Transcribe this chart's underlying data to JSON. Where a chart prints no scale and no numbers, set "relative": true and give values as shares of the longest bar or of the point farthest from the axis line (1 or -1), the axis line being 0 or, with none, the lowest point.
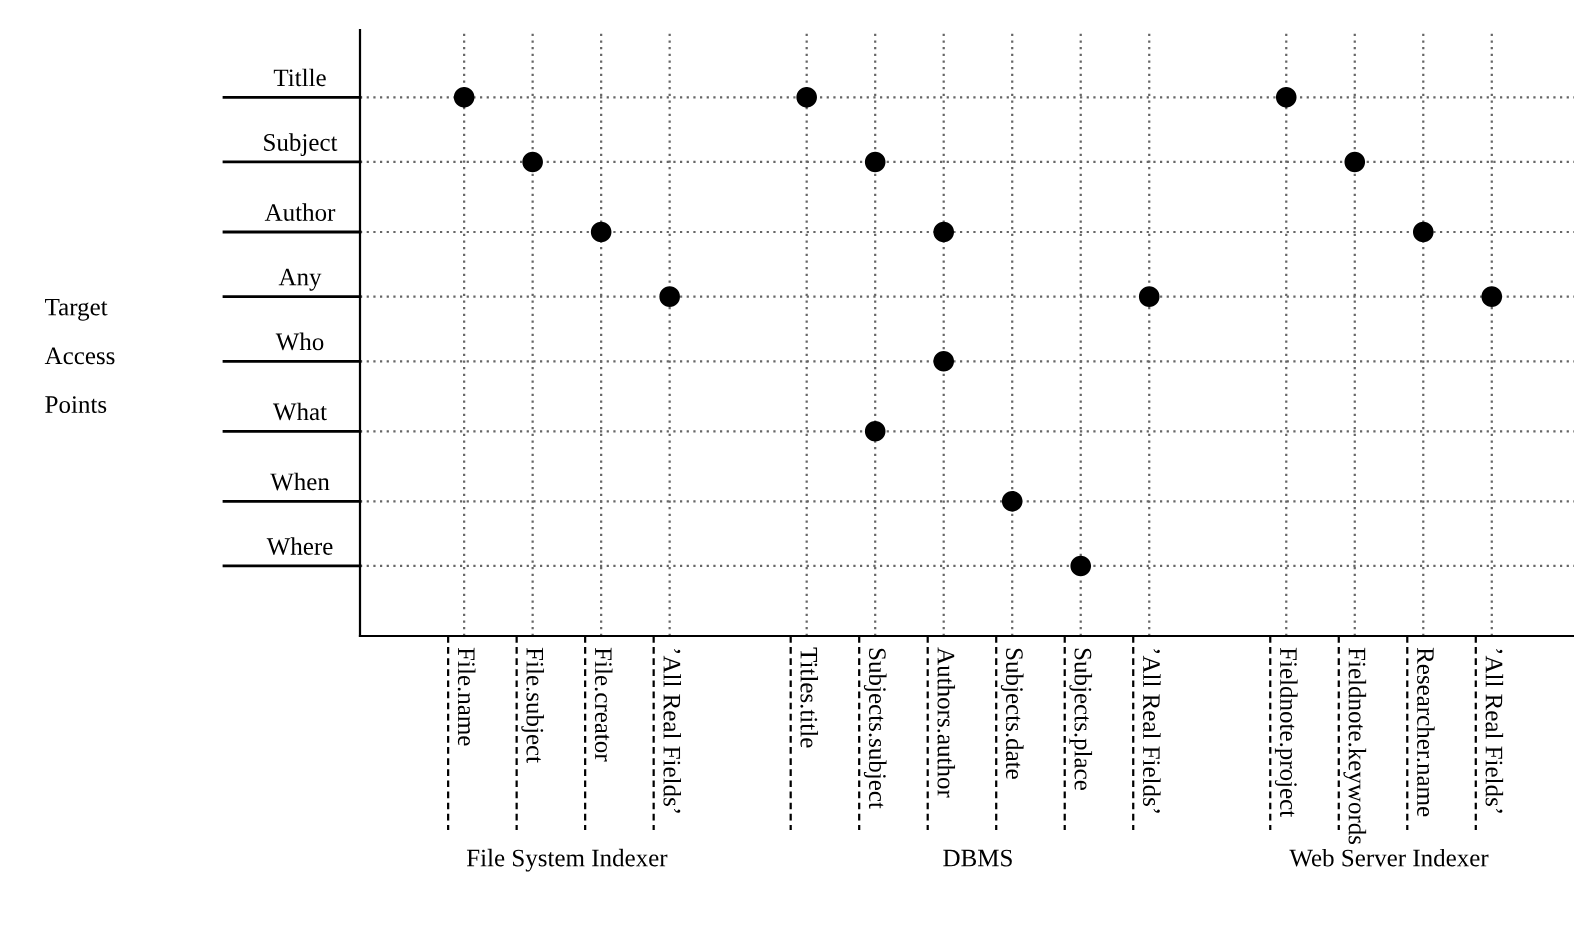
{
  "chart_data": {
    "type": "scatter",
    "relative": true,
    "ylabel": "Target\nAccess\nPoints",
    "categories": [
      "File.name",
      "File.subject",
      "File.creator",
      "’All Real Fields’",
      null,
      "Titles.title",
      "Subjects.subject",
      "Authors.author",
      "Subjects.date",
      "Subjects.place",
      "’All Real Fields’",
      null,
      "Fieldnote.project",
      "Fieldnote.keywords",
      "Researcher.name",
      "’All Real Fields’"
    ],
    "series": [
      {
        "color": "#000000",
        "values": [
          1.0,
          0.88,
          0.75,
          0.63,
          null,
          1.0,
          0.88,
          0.75,
          0.25,
          0.13,
          0.63,
          null,
          1.0,
          0.88,
          0.75,
          0.63
        ]
      },
      {
        "color": "#000000",
        "values": [
          null,
          null,
          null,
          null,
          null,
          null,
          0.38,
          0.51,
          null,
          null,
          null,
          null,
          null,
          null,
          null,
          null
        ]
      }
    ],
    "ref_lines": [
      {
        "axis": "y",
        "value": 1.0,
        "label": "Titlle"
      },
      {
        "axis": "y",
        "value": 0.88,
        "label": "Subject"
      },
      {
        "axis": "y",
        "value": 0.75,
        "label": "Author"
      },
      {
        "axis": "y",
        "value": 0.63,
        "label": "Any"
      },
      {
        "axis": "y",
        "value": 0.51,
        "label": "Who"
      },
      {
        "axis": "y",
        "value": 0.38,
        "label": "What"
      },
      {
        "axis": "y",
        "value": 0.25,
        "label": "When"
      },
      {
        "axis": "y",
        "value": 0.13,
        "label": "Where"
      }
    ],
    "marker": "circle",
    "grid": "x",
    "tick_labels": "x",
    "annotations": [
      "File System Indexer",
      "DBMS",
      "Web Server Indexer"
    ]
  }
}
